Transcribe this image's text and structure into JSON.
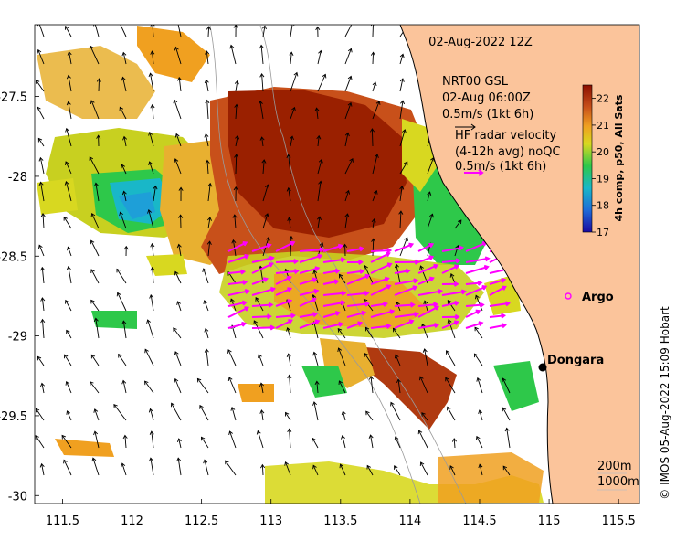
{
  "title": "02-Aug-2022 12Z",
  "model_label": {
    "line1": "NRT00 GSL",
    "line2": "02-Aug 06:00Z",
    "scale": "0.5m/s (1kt 6h)"
  },
  "hf_radar_label": {
    "line1": "HF radar velocity",
    "line2": "(4-12h avg) noQC",
    "scale": "0.5m/s (1kt 6h)"
  },
  "colorbar": {
    "title": "4h comp, p50, All Sats",
    "ticks": [
      "22",
      "21",
      "20",
      "19",
      "18",
      "17"
    ],
    "range": [
      17,
      22.5
    ]
  },
  "axes": {
    "x_ticks": [
      "111.5",
      "112",
      "112.5",
      "113",
      "113.5",
      "114",
      "114.5",
      "115",
      "115.5"
    ],
    "y_ticks": [
      "-27.5",
      "-28",
      "-28.5",
      "-29",
      "-29.5",
      "-30"
    ],
    "xlim": [
      111.3,
      115.65
    ],
    "ylim": [
      -30.05,
      -27.05
    ]
  },
  "places": [
    {
      "name": "Dongara",
      "lon": 114.93,
      "lat": -29.25,
      "marker": "dot"
    },
    {
      "name": "Argo",
      "lon": 114.92,
      "lat": -28.82,
      "marker": "circle"
    }
  ],
  "isobaths": [
    "200m",
    "1000m"
  ],
  "credit": "© IMOS 05-Aug-2022 15:09 Hobart",
  "colors": {
    "land": "#fbc49b",
    "hf_vectors": "#ff00ff",
    "model_vectors": "#000000",
    "argo": "#ff00ff"
  }
}
